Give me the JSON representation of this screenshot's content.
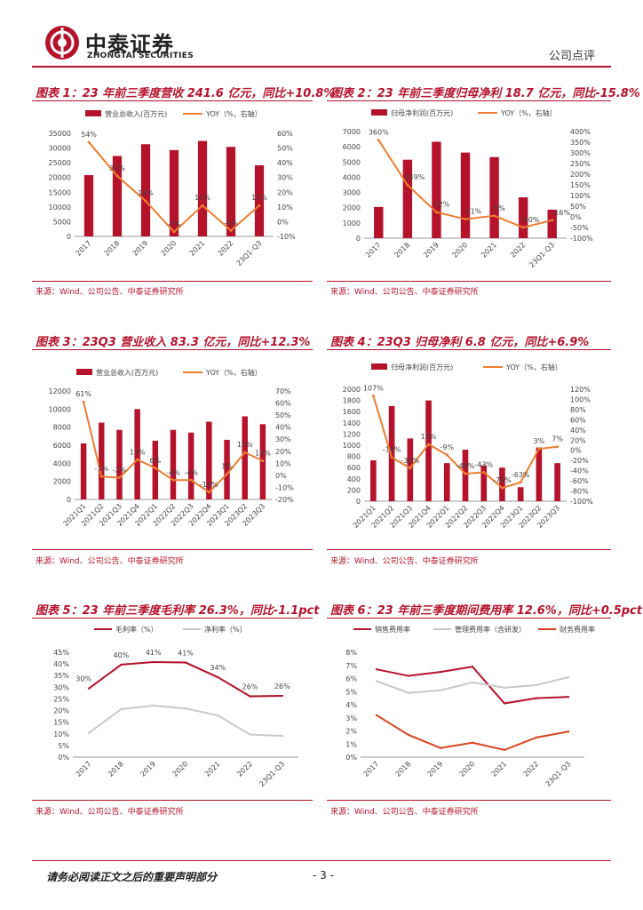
{
  "header": {
    "brand_cn": "中泰证券",
    "brand_en": "ZHONGTAI SECURITIES",
    "doc_type": "公司点评"
  },
  "colors": {
    "bar": "#b5122b",
    "line": "#ed7d31",
    "gray": "#c8c8c8",
    "accent": "#b5122b"
  },
  "figures": [
    {
      "title": "图表 1：23 年前三季度营收 241.6 亿元，同比+10.8%",
      "source": "来源：Wind、公司公告、中泰证券研究所",
      "chart_data": {
        "type": "bar",
        "categories": [
          "2017",
          "2018",
          "2019",
          "2020",
          "2021",
          "2022",
          "23Q1-Q3"
        ],
        "series": [
          {
            "name": "营业总收入(百万元)",
            "kind": "bar",
            "axis": "left",
            "values": [
              20800,
              27300,
              31300,
              29300,
              32400,
              30400,
              24160
            ]
          },
          {
            "name": "YOY（%，右轴）",
            "kind": "line",
            "axis": "right",
            "values": [
              54,
              31,
              14,
              -7,
              11,
              -6,
              11
            ],
            "labels": [
              "54%",
              "31%",
              "14%",
              "-7%",
              "11%",
              "-6%",
              "11%"
            ]
          }
        ],
        "y_left": {
          "min": 0,
          "max": 35000,
          "ticks": [
            "0",
            "5000",
            "10000",
            "15000",
            "20000",
            "25000",
            "30000",
            "35000"
          ]
        },
        "y_right": {
          "min": -10,
          "max": 60,
          "ticks": [
            "-10%",
            "0%",
            "10%",
            "20%",
            "30%",
            "40%",
            "50%",
            "60%"
          ]
        }
      }
    },
    {
      "title": "图表 2：23 年前三季度归母净利 18.7 亿元，同比-15.8%",
      "source": "来源：Wind、公司公告、中泰证券研究所",
      "chart_data": {
        "type": "bar",
        "categories": [
          "2017",
          "2018",
          "2019",
          "2020",
          "2021",
          "2022",
          "23Q1-Q3"
        ],
        "series": [
          {
            "name": "归母净利润(百万元)",
            "kind": "bar",
            "axis": "left",
            "values": [
              2050,
              5150,
              6330,
              5620,
              5320,
              2680,
              1870
            ]
          },
          {
            "name": "YOY（%，右轴）",
            "kind": "line",
            "axis": "right",
            "values": [
              360,
              149,
              22,
              -11,
              5,
              -50,
              -16
            ],
            "labels": [
              "360%",
              "149%",
              "22%",
              "-11%",
              "5%",
              "-50%",
              "-16%"
            ]
          }
        ],
        "y_left": {
          "min": 0,
          "max": 7000,
          "ticks": [
            "0",
            "1000",
            "2000",
            "3000",
            "4000",
            "5000",
            "6000",
            "7000"
          ]
        },
        "y_right": {
          "min": -100,
          "max": 400,
          "ticks": [
            "-100%",
            "-50%",
            "0%",
            "50%",
            "100%",
            "150%",
            "200%",
            "250%",
            "300%",
            "350%",
            "400%"
          ]
        }
      }
    },
    {
      "title": "图表 3：23Q3 营业收入 83.3 亿元，同比+12.3%",
      "source": "来源：Wind、公司公告、中泰证券研究所",
      "chart_data": {
        "type": "bar",
        "categories": [
          "2021Q1",
          "2021Q2",
          "2021Q3",
          "2021Q4",
          "2022Q1",
          "2022Q2",
          "2022Q3",
          "2022Q4",
          "2023Q1",
          "2023Q2",
          "2023Q3"
        ],
        "series": [
          {
            "name": "营业总收入(百万元)",
            "kind": "bar",
            "axis": "left",
            "values": [
              6200,
              8500,
              7700,
              10000,
              6500,
              7700,
              7400,
              8600,
              6600,
              9200,
              8330
            ]
          },
          {
            "name": "YOY（%，右轴）",
            "kind": "line",
            "axis": "right",
            "values": [
              61,
              -1,
              -2,
              13,
              6,
              -4,
              -4,
              -14,
              1,
              19,
              12
            ],
            "labels": [
              "61%",
              "-1%",
              "-2%",
              "13%",
              "6%",
              "-4%",
              "-4%",
              "-14%",
              "1%",
              "19%",
              "12%"
            ]
          }
        ],
        "y_left": {
          "min": 0,
          "max": 12000,
          "ticks": [
            "0",
            "2000",
            "4000",
            "6000",
            "8000",
            "10000",
            "12000"
          ]
        },
        "y_right": {
          "min": -20,
          "max": 70,
          "ticks": [
            "-20%",
            "-10%",
            "0%",
            "10%",
            "20%",
            "30%",
            "40%",
            "50%",
            "60%",
            "70%"
          ]
        }
      }
    },
    {
      "title": "图表 4：23Q3 归母净利 6.8 亿元，同比+6.9%",
      "source": "来源：Wind、公司公告、中泰证券研究所",
      "chart_data": {
        "type": "bar",
        "categories": [
          "2021Q1",
          "2021Q2",
          "2021Q3",
          "2021Q4",
          "2022Q1",
          "2022Q2",
          "2022Q3",
          "2022Q4",
          "2023Q1",
          "2023Q2",
          "2023Q3"
        ],
        "series": [
          {
            "name": "归母净利润(百万元)",
            "kind": "bar",
            "axis": "left",
            "values": [
              730,
              1700,
              1120,
              1800,
              680,
              920,
              640,
              600,
              250,
              960,
              680
            ]
          },
          {
            "name": "YOY（%，右轴）",
            "kind": "line",
            "axis": "right",
            "values": [
              107,
              -14,
              -35,
              12,
              -9,
              -46,
              -43,
              -74,
              -63,
              3,
              7
            ],
            "labels": [
              "107%",
              "-14%",
              "-35%",
              "12%",
              "-9%",
              "-46%",
              "-43%",
              "-74%",
              "-63%",
              "3%",
              "7%"
            ]
          }
        ],
        "y_left": {
          "min": 0,
          "max": 2000,
          "ticks": [
            "0",
            "200",
            "400",
            "600",
            "800",
            "1000",
            "1200",
            "1400",
            "1600",
            "1800",
            "2000"
          ]
        },
        "y_right": {
          "min": -100,
          "max": 120,
          "ticks": [
            "-100%",
            "-80%",
            "-60%",
            "-40%",
            "-20%",
            "0%",
            "20%",
            "40%",
            "60%",
            "80%",
            "100%",
            "120%"
          ]
        }
      }
    },
    {
      "title": "图表 5：23 年前三季度毛利率 26.3%，同比-1.1pct",
      "source": "来源：Wind、公司公告、中泰证券研究所",
      "chart_data": {
        "type": "line",
        "categories": [
          "2017",
          "2018",
          "2019",
          "2020",
          "2021",
          "2022",
          "23Q1-Q3"
        ],
        "series": [
          {
            "name": "毛利率（%）",
            "color": "#b5122b",
            "values": [
              29.5,
              39.7,
              40.8,
              40.6,
              34.3,
              26.1,
              26.3
            ],
            "labels": [
              "30%",
              "40%",
              "41%",
              "41%",
              "34%",
              "26%",
              "26%"
            ]
          },
          {
            "name": "净利率（%）",
            "color": "#c8c8c8",
            "values": [
              10.4,
              20.6,
              22.1,
              20.9,
              17.9,
              9.7,
              9.1
            ],
            "labels": []
          }
        ],
        "y": {
          "min": 0,
          "max": 45,
          "ticks": [
            "0%",
            "5%",
            "10%",
            "15%",
            "20%",
            "25%",
            "30%",
            "35%",
            "40%",
            "45%"
          ]
        }
      }
    },
    {
      "title": "图表 6：23 年前三季度期间费用率 12.6%，同比+0.5pct",
      "source": "来源：Wind、公司公告、中泰证券研究所",
      "chart_data": {
        "type": "line",
        "categories": [
          "2017",
          "2018",
          "2019",
          "2020",
          "2021",
          "2022",
          "23Q1-Q3"
        ],
        "series": [
          {
            "name": "销售费用率",
            "color": "#b5122b",
            "values": [
              6.7,
              6.2,
              6.5,
              6.9,
              4.1,
              4.5,
              4.6
            ]
          },
          {
            "name": "管理费用率（含研发）",
            "color": "#c8c8c8",
            "values": [
              5.8,
              4.9,
              5.1,
              5.7,
              5.3,
              5.5,
              6.1
            ]
          },
          {
            "name": "财务费用率",
            "color": "#d8431f",
            "values": [
              3.2,
              1.7,
              0.7,
              1.1,
              0.55,
              1.5,
              1.95
            ]
          }
        ],
        "y": {
          "min": 0,
          "max": 8,
          "ticks": [
            "0%",
            "1%",
            "2%",
            "3%",
            "4%",
            "5%",
            "6%",
            "7%",
            "8%"
          ]
        }
      }
    }
  ],
  "footer": {
    "note": "请务必阅读正文之后的重要声明部分",
    "page": "- 3 -"
  }
}
